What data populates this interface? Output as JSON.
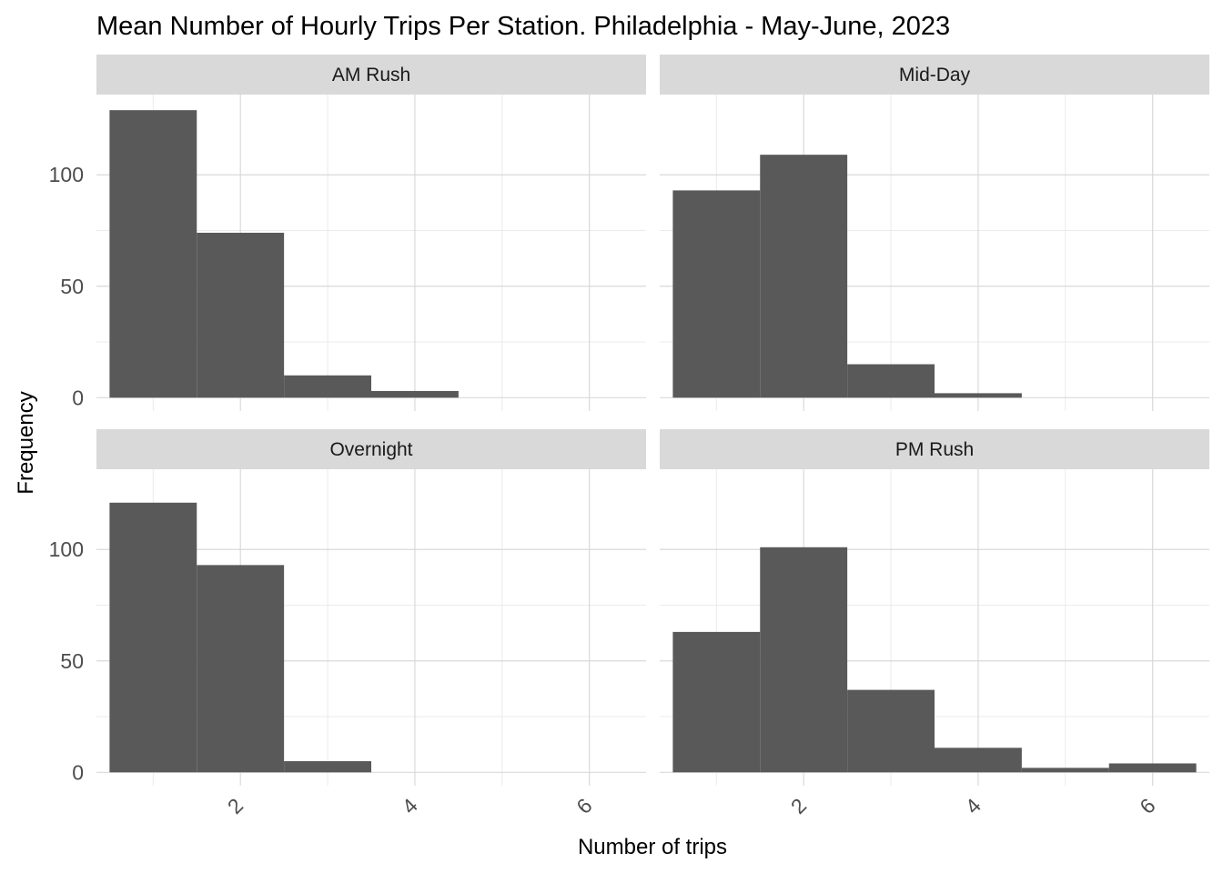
{
  "chart_data": {
    "type": "bar",
    "title": "Mean Number of Hourly Trips Per Station. Philadelphia - May-June, 2023",
    "xlabel": "Number of trips",
    "ylabel": "Frequency",
    "xlim": [
      0.35,
      6.65
    ],
    "ylim": [
      -6,
      136
    ],
    "x_ticks": [
      2,
      4,
      6
    ],
    "y_ticks": [
      0,
      50,
      100
    ],
    "bin_width": 1,
    "grid": true,
    "legend": "none",
    "bar_color": "#595959",
    "panels": [
      {
        "name": "AM Rush",
        "bins": [
          {
            "center": 1,
            "count": 129
          },
          {
            "center": 2,
            "count": 74
          },
          {
            "center": 3,
            "count": 10
          },
          {
            "center": 4,
            "count": 3
          }
        ]
      },
      {
        "name": "Mid-Day",
        "bins": [
          {
            "center": 1,
            "count": 93
          },
          {
            "center": 2,
            "count": 109
          },
          {
            "center": 3,
            "count": 15
          },
          {
            "center": 4,
            "count": 2
          }
        ]
      },
      {
        "name": "Overnight",
        "bins": [
          {
            "center": 1,
            "count": 121
          },
          {
            "center": 2,
            "count": 93
          },
          {
            "center": 3,
            "count": 5
          }
        ]
      },
      {
        "name": "PM Rush",
        "bins": [
          {
            "center": 1,
            "count": 63
          },
          {
            "center": 2,
            "count": 101
          },
          {
            "center": 3,
            "count": 37
          },
          {
            "center": 4,
            "count": 11
          },
          {
            "center": 5,
            "count": 2
          },
          {
            "center": 6,
            "count": 4
          }
        ]
      }
    ]
  }
}
